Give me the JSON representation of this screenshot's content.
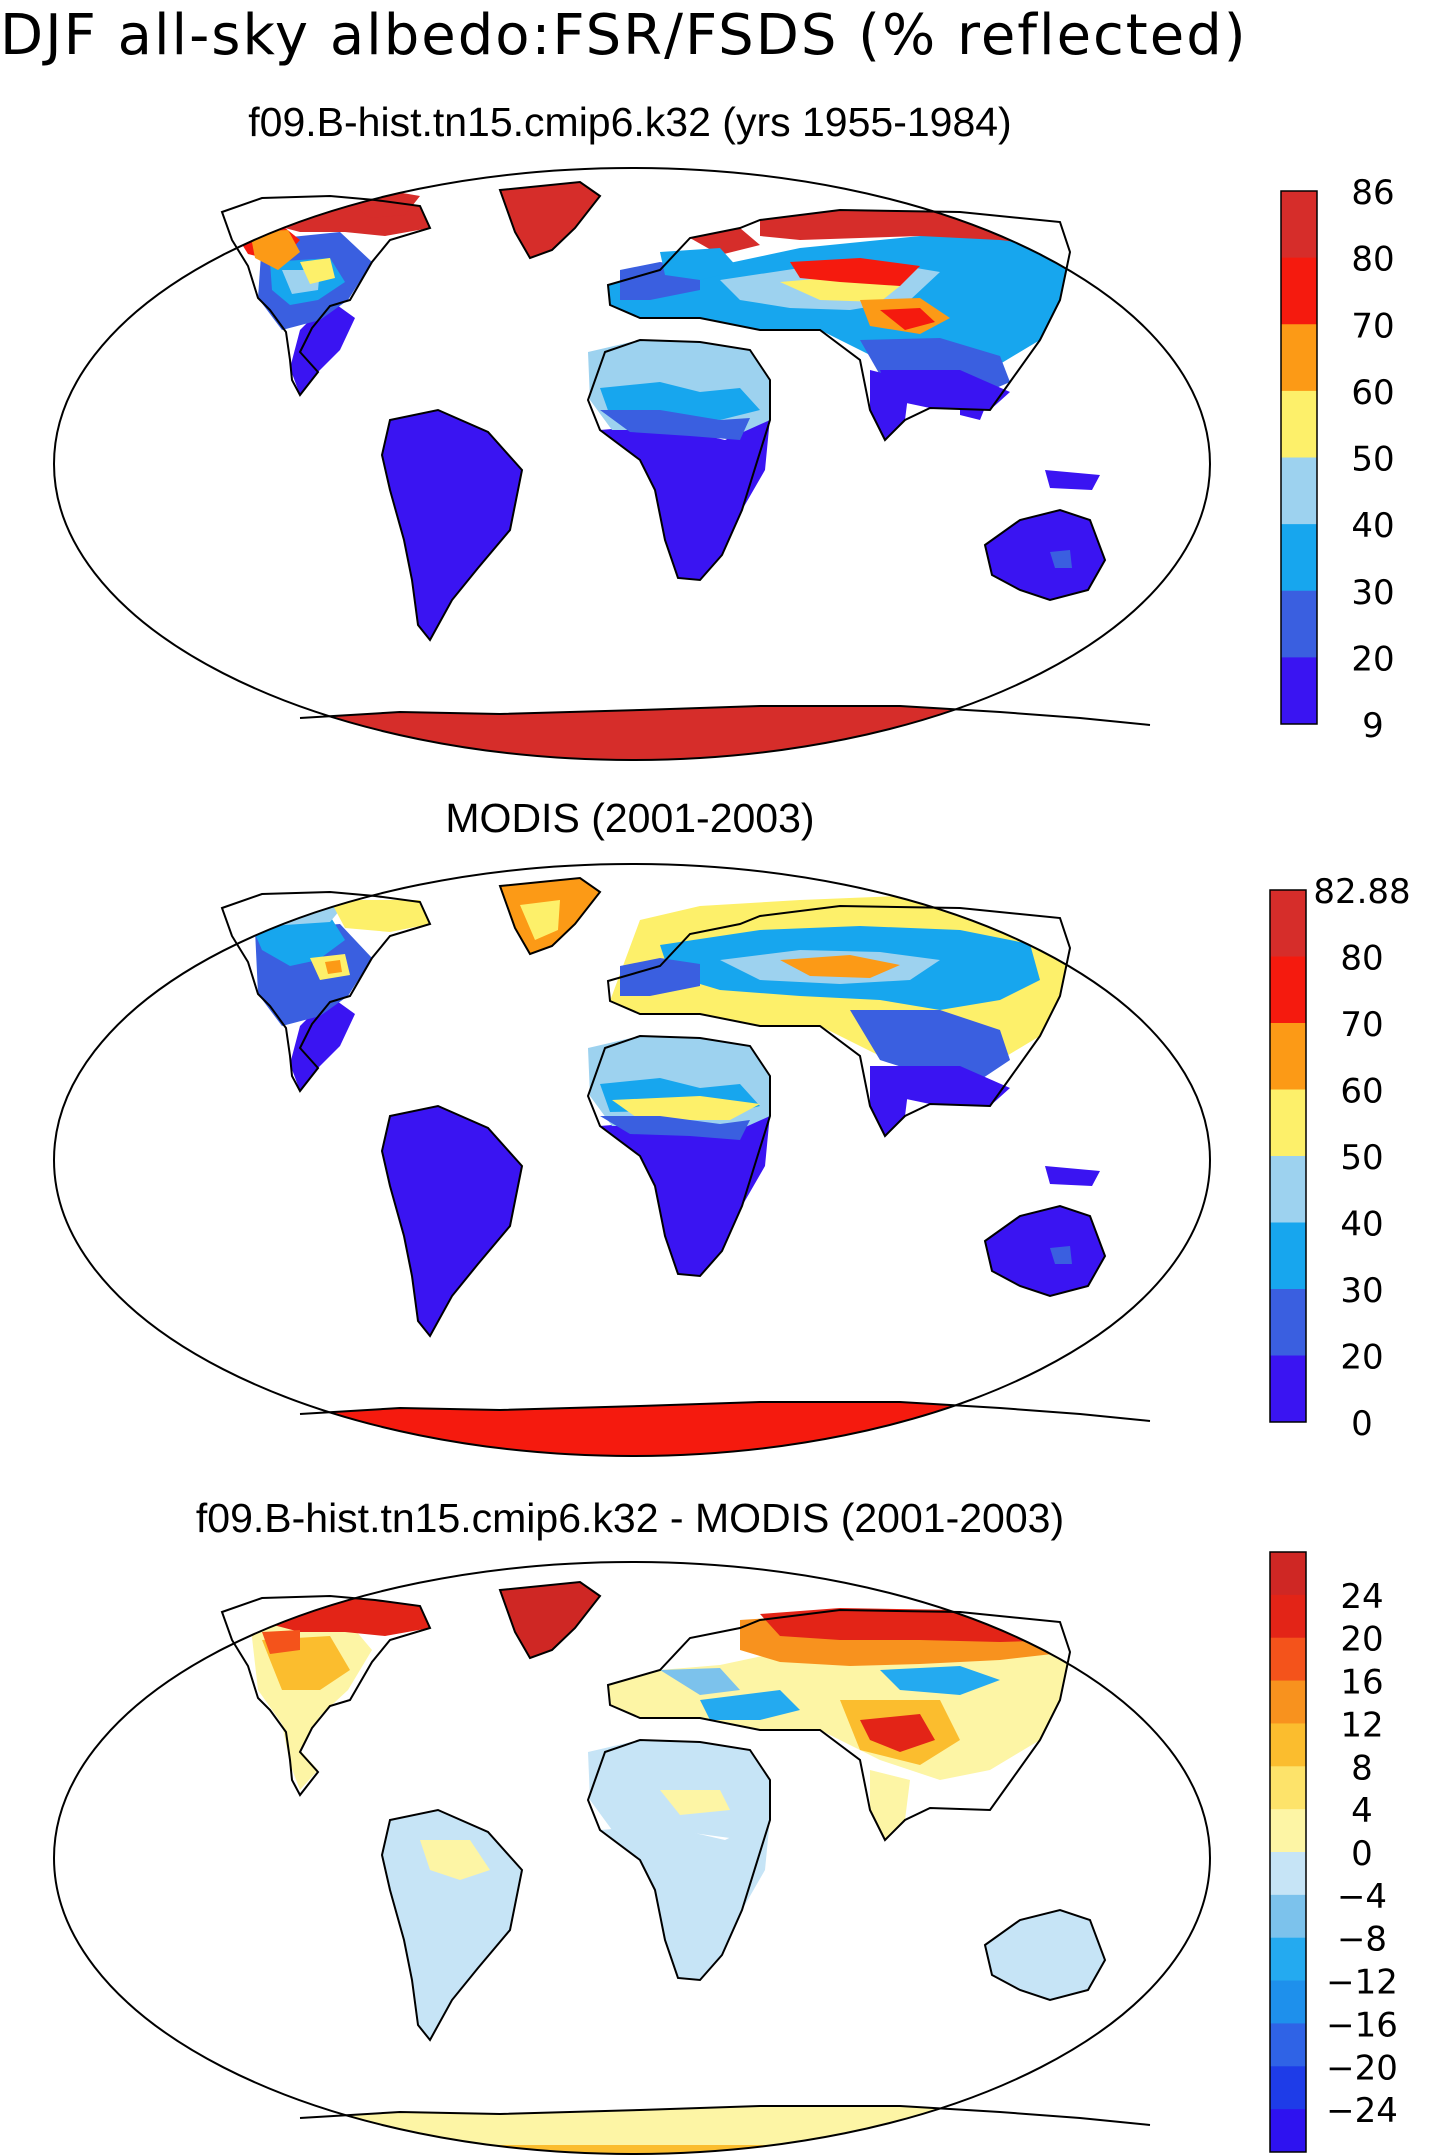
{
  "title": "DJF all-sky albedo:FSR/FSDS (% reflected)",
  "colors": {
    "c9": "#3a14f2",
    "c20": "#3a5fe0",
    "c30": "#17a6ee",
    "c40": "#9dd2ef",
    "c50": "#fdf06a",
    "c60": "#fc9a16",
    "c70": "#f51a0e",
    "c80": "#d62d2a",
    "d_m24": "#2e12f0",
    "d_m20": "#1e3ce8",
    "d_m16": "#2f63e6",
    "d_m12": "#1e90ec",
    "d_m8": "#24aaf0",
    "d_m4": "#7cc2ec",
    "d_0": "#c6e4f6",
    "d_4": "#fdf5a5",
    "d_8": "#fde36a",
    "d_12": "#fbbd2e",
    "d_16": "#f8921e",
    "d_20": "#f4531b",
    "d_24": "#e32417",
    "d_top": "#cf2724"
  },
  "panels": [
    {
      "title": "f09.B-hist.tn15.cmip6.k32 (yrs 1955-1984)",
      "projection": "Robinson",
      "colorbar": {
        "ticks": [
          "86",
          "80",
          "70",
          "60",
          "50",
          "40",
          "30",
          "20",
          "9"
        ],
        "bins": [
          "c80",
          "c70",
          "c60",
          "c50",
          "c40",
          "c30",
          "c20",
          "c9"
        ]
      }
    },
    {
      "title": "MODIS (2001-2003)",
      "projection": "Robinson",
      "colorbar": {
        "ticks": [
          "82.88",
          "80",
          "70",
          "60",
          "50",
          "40",
          "30",
          "20",
          "0"
        ],
        "bins": [
          "c80",
          "c70",
          "c60",
          "c50",
          "c40",
          "c30",
          "c20",
          "c9"
        ]
      }
    },
    {
      "title": "f09.B-hist.tn15.cmip6.k32 - MODIS (2001-2003)",
      "projection": "Robinson",
      "colorbar": {
        "ticks": [
          "24",
          "20",
          "16",
          "12",
          "8",
          "4",
          "0",
          "−4",
          "−8",
          "−12",
          "−16",
          "−20",
          "−24"
        ],
        "bins": [
          "d_top",
          "d_24",
          "d_20",
          "d_16",
          "d_12",
          "d_8",
          "d_4",
          "d_0",
          "d_m4",
          "d_m8",
          "d_m12",
          "d_m16",
          "d_m20",
          "d_m24"
        ]
      }
    }
  ]
}
